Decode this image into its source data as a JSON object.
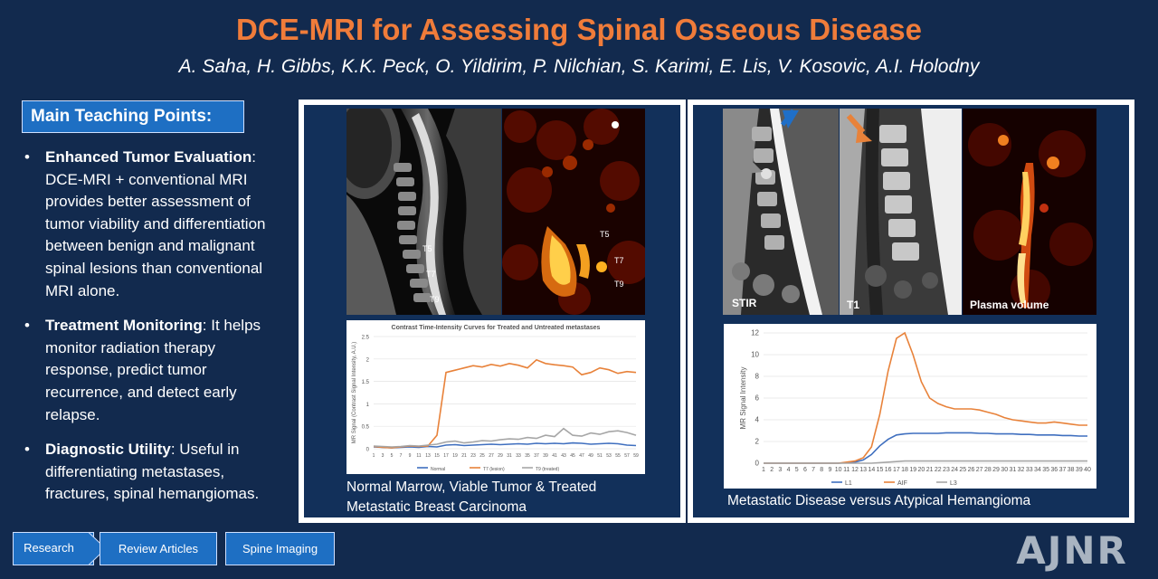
{
  "header": {
    "title": "DCE-MRI for Assessing Spinal Osseous Disease",
    "authors": "A. Saha, H. Gibbs, K.K. Peck, O. Yildirim, P. Nilchian, S. Karimi, E. Lis, V. Kosovic, A.I. Holodny"
  },
  "teaching": {
    "heading": "Main Teaching Points:",
    "points": [
      {
        "bold": "Enhanced Tumor Evaluation",
        "text": ": DCE-MRI + conventional MRI provides better assessment of tumor viability and differentiation between benign and malignant spinal lesions than conventional MRI alone."
      },
      {
        "bold": "Treatment Monitoring",
        "text": ": It helps monitor radiation therapy response, predict tumor recurrence, and detect early relapse."
      },
      {
        "bold": "Diagnostic Utility",
        "text": ": Useful in differentiating metastases, fractures, spinal hemangiomas."
      }
    ]
  },
  "left_panel": {
    "mri_labels": [
      "T5",
      "T7",
      "T9"
    ],
    "perfusion_labels": [
      "T5",
      "T7",
      "T9"
    ],
    "caption": "Normal Marrow, Viable Tumor & Treated Metastatic Breast Carcinoma"
  },
  "right_panel": {
    "sequence_labels": {
      "stir": "STIR",
      "t1": "T1",
      "pv": "Plasma volume"
    },
    "caption": "Metastatic Disease versus Atypical Hemangioma"
  },
  "chart_data": [
    {
      "type": "line",
      "title": "Contrast Time-Intensity Curves for Treated and Untreated metastases",
      "ylabel": "MR Signal (Contrast Signal Intensity, A.U.)",
      "xlabel": "",
      "ylim": [
        0,
        2.5
      ],
      "yticks": [
        "0",
        "0.5",
        "1",
        "1.5",
        "2",
        "2.5"
      ],
      "x": [
        1,
        3,
        5,
        7,
        9,
        11,
        13,
        15,
        17,
        19,
        21,
        23,
        25,
        27,
        29,
        31,
        33,
        35,
        37,
        39,
        41,
        43,
        45,
        47,
        49,
        51,
        53,
        55,
        57,
        59
      ],
      "series": [
        {
          "name": "Normal",
          "color": "#3f6fbf",
          "values": [
            0.04,
            0.03,
            0.02,
            0.03,
            0.04,
            0.03,
            0.05,
            0.04,
            0.08,
            0.09,
            0.07,
            0.08,
            0.09,
            0.1,
            0.09,
            0.1,
            0.11,
            0.1,
            0.12,
            0.11,
            0.12,
            0.11,
            0.13,
            0.12,
            0.1,
            0.11,
            0.12,
            0.11,
            0.08,
            0.07
          ]
        },
        {
          "name": "T7 (lesion)",
          "color": "#e8823a",
          "values": [
            0.05,
            0.03,
            0.02,
            0.04,
            0.06,
            0.05,
            0.06,
            0.3,
            1.7,
            1.75,
            1.8,
            1.85,
            1.82,
            1.88,
            1.84,
            1.9,
            1.86,
            1.8,
            1.98,
            1.9,
            1.87,
            1.85,
            1.82,
            1.65,
            1.7,
            1.8,
            1.76,
            1.68,
            1.72,
            1.7
          ]
        },
        {
          "name": "T9 (treated)",
          "color": "#a6a6a6",
          "values": [
            0.06,
            0.05,
            0.04,
            0.05,
            0.07,
            0.06,
            0.08,
            0.1,
            0.15,
            0.17,
            0.13,
            0.15,
            0.18,
            0.17,
            0.2,
            0.22,
            0.21,
            0.25,
            0.23,
            0.3,
            0.27,
            0.45,
            0.3,
            0.28,
            0.35,
            0.32,
            0.38,
            0.4,
            0.36,
            0.3
          ]
        }
      ]
    },
    {
      "type": "line",
      "title": "",
      "ylabel": "MR Signal Intensity",
      "xlabel": "",
      "ylim": [
        0,
        12
      ],
      "yticks": [
        "0",
        "2",
        "4",
        "6",
        "8",
        "10",
        "12"
      ],
      "x": [
        1,
        2,
        3,
        4,
        5,
        6,
        7,
        8,
        9,
        10,
        11,
        12,
        13,
        14,
        15,
        16,
        17,
        18,
        19,
        20,
        21,
        22,
        23,
        24,
        25,
        26,
        27,
        28,
        29,
        30,
        31,
        32,
        33,
        34,
        35,
        36,
        37,
        38,
        39,
        40
      ],
      "series": [
        {
          "name": "L1",
          "color": "#3f6fbf",
          "values": [
            0,
            0,
            0,
            0,
            0,
            0,
            0,
            0,
            0,
            0,
            0.05,
            0.1,
            0.3,
            0.8,
            1.6,
            2.2,
            2.6,
            2.7,
            2.75,
            2.75,
            2.75,
            2.75,
            2.8,
            2.8,
            2.8,
            2.8,
            2.75,
            2.75,
            2.7,
            2.7,
            2.7,
            2.65,
            2.65,
            2.6,
            2.6,
            2.6,
            2.55,
            2.55,
            2.5,
            2.5
          ]
        },
        {
          "name": "AIF",
          "color": "#e8823a",
          "values": [
            0,
            0,
            0,
            0,
            0,
            0,
            0,
            0,
            0,
            0,
            0.1,
            0.2,
            0.5,
            1.5,
            4.5,
            8.5,
            11.5,
            12,
            10,
            7.5,
            6,
            5.5,
            5.2,
            5,
            5,
            5,
            4.9,
            4.7,
            4.5,
            4.2,
            4,
            3.9,
            3.8,
            3.7,
            3.7,
            3.8,
            3.7,
            3.6,
            3.5,
            3.5
          ]
        },
        {
          "name": "L3",
          "color": "#a6a6a6",
          "values": [
            0,
            0,
            0,
            0,
            0,
            0,
            0,
            0,
            0,
            0,
            0,
            0,
            0,
            0,
            0.05,
            0.1,
            0.15,
            0.2,
            0.2,
            0.2,
            0.2,
            0.2,
            0.2,
            0.2,
            0.2,
            0.2,
            0.2,
            0.2,
            0.2,
            0.2,
            0.2,
            0.2,
            0.2,
            0.2,
            0.2,
            0.2,
            0.2,
            0.2,
            0.2,
            0.2
          ]
        }
      ]
    }
  ],
  "nav": {
    "research": "Research",
    "review": "Review Articles",
    "spine": "Spine Imaging"
  },
  "logo": "AJNR"
}
